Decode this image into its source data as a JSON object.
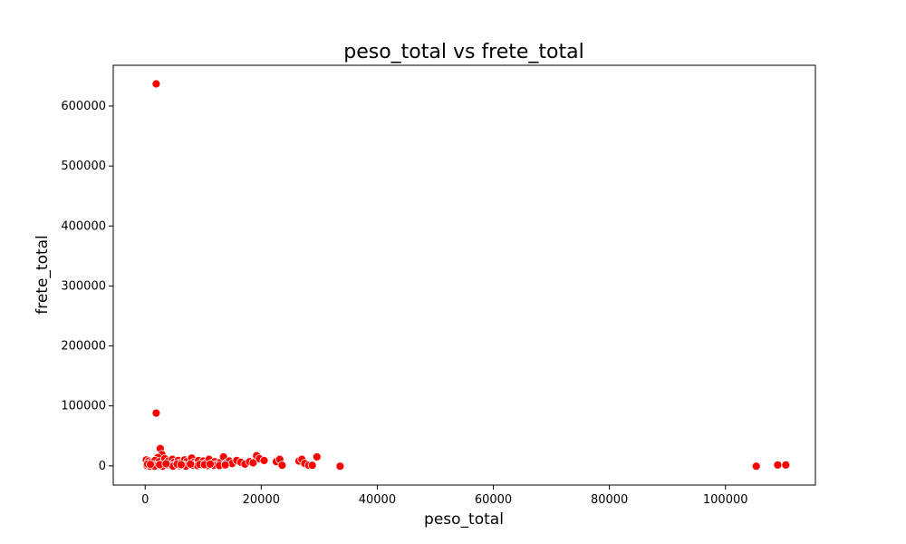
{
  "chart_data": {
    "type": "scatter",
    "title": "peso_total vs frete_total",
    "xlabel": "peso_total",
    "ylabel": "frete_total",
    "xlim": [
      -5500,
      115500
    ],
    "ylim": [
      -32000,
      668000
    ],
    "x_ticks": [
      0,
      20000,
      40000,
      60000,
      80000,
      100000
    ],
    "y_ticks": [
      0,
      100000,
      200000,
      300000,
      400000,
      500000,
      600000
    ],
    "grid": false,
    "marker_color": "#ff0000",
    "series": [
      {
        "points": [
          [
            1900,
            637000
          ],
          [
            1900,
            88000
          ],
          [
            2600,
            29000
          ],
          [
            2900,
            19000
          ],
          [
            2200,
            14000
          ],
          [
            200,
            10000
          ],
          [
            600,
            8000
          ],
          [
            1000,
            6000
          ],
          [
            1300,
            4000
          ],
          [
            1700,
            9000
          ],
          [
            2000,
            3000
          ],
          [
            2400,
            7000
          ],
          [
            3100,
            5000
          ],
          [
            3400,
            12000
          ],
          [
            3700,
            2000
          ],
          [
            4000,
            8000
          ],
          [
            4300,
            4000
          ],
          [
            4700,
            11000
          ],
          [
            5000,
            6000
          ],
          [
            5300,
            2000
          ],
          [
            5700,
            9000
          ],
          [
            6000,
            5000
          ],
          [
            6400,
            3000
          ],
          [
            6800,
            10000
          ],
          [
            7200,
            7000
          ],
          [
            7600,
            2000
          ],
          [
            8000,
            13000
          ],
          [
            8400,
            6000
          ],
          [
            8800,
            4000
          ],
          [
            9200,
            9000
          ],
          [
            9600,
            3000
          ],
          [
            10000,
            8000
          ],
          [
            10500,
            5000
          ],
          [
            11000,
            11000
          ],
          [
            11500,
            4000
          ],
          [
            12000,
            7000
          ],
          [
            12500,
            3000
          ],
          [
            13000,
            6000
          ],
          [
            13500,
            15000
          ],
          [
            14000,
            5000
          ],
          [
            14500,
            8000
          ],
          [
            15000,
            4000
          ],
          [
            15800,
            9000
          ],
          [
            16500,
            6000
          ],
          [
            17200,
            3000
          ],
          [
            18000,
            7000
          ],
          [
            18600,
            5000
          ],
          [
            19200,
            17000
          ],
          [
            19700,
            12000
          ],
          [
            20500,
            9000
          ],
          [
            22600,
            7000
          ],
          [
            23200,
            11000
          ],
          [
            23600,
            1000
          ],
          [
            26500,
            8000
          ],
          [
            27000,
            11000
          ],
          [
            27500,
            4000
          ],
          [
            28200,
            1000
          ],
          [
            28800,
            1000
          ],
          [
            29600,
            15000
          ],
          [
            33600,
            -500
          ],
          [
            105300,
            -500
          ],
          [
            109000,
            1500
          ],
          [
            110400,
            1500
          ],
          [
            300,
            500
          ],
          [
            800,
            1500
          ],
          [
            1200,
            500
          ],
          [
            1500,
            2000
          ],
          [
            2100,
            500
          ],
          [
            2700,
            1000
          ],
          [
            3300,
            500
          ],
          [
            3900,
            1500
          ],
          [
            4500,
            500
          ],
          [
            5100,
            1000
          ],
          [
            5900,
            500
          ],
          [
            6600,
            1500
          ],
          [
            7400,
            500
          ],
          [
            8200,
            1000
          ],
          [
            9000,
            500
          ],
          [
            9800,
            1500
          ],
          [
            10800,
            500
          ],
          [
            11800,
            1000
          ],
          [
            12800,
            500
          ],
          [
            13800,
            1500
          ],
          [
            800,
            -500
          ],
          [
            1600,
            -500
          ],
          [
            3000,
            -500
          ],
          [
            4800,
            -500
          ],
          [
            7000,
            -500
          ],
          [
            400,
            3000
          ],
          [
            900,
            2500
          ],
          [
            2500,
            2000
          ],
          [
            3600,
            3500
          ],
          [
            5500,
            3000
          ],
          [
            6200,
            2000
          ],
          [
            7800,
            3000
          ],
          [
            9400,
            2500
          ],
          [
            10200,
            2000
          ],
          [
            11200,
            3000
          ]
        ]
      }
    ]
  }
}
